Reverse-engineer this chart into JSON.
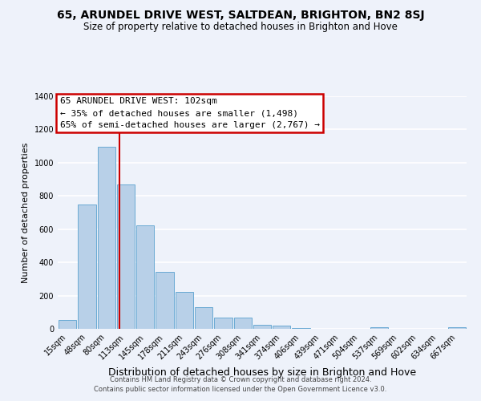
{
  "title": "65, ARUNDEL DRIVE WEST, SALTDEAN, BRIGHTON, BN2 8SJ",
  "subtitle": "Size of property relative to detached houses in Brighton and Hove",
  "xlabel": "Distribution of detached houses by size in Brighton and Hove",
  "ylabel": "Number of detached properties",
  "bar_labels": [
    "15sqm",
    "48sqm",
    "80sqm",
    "113sqm",
    "145sqm",
    "178sqm",
    "211sqm",
    "243sqm",
    "276sqm",
    "308sqm",
    "341sqm",
    "374sqm",
    "406sqm",
    "439sqm",
    "471sqm",
    "504sqm",
    "537sqm",
    "569sqm",
    "602sqm",
    "634sqm",
    "667sqm"
  ],
  "bar_values": [
    52,
    748,
    1097,
    870,
    621,
    345,
    224,
    130,
    68,
    70,
    25,
    18,
    5,
    0,
    0,
    0,
    8,
    0,
    0,
    0,
    8
  ],
  "bar_color": "#b8d0e8",
  "bar_edge_color": "#6aaad4",
  "vline_color": "#cc0000",
  "ylim": [
    0,
    1400
  ],
  "yticks": [
    0,
    200,
    400,
    600,
    800,
    1000,
    1200,
    1400
  ],
  "annotation_title": "65 ARUNDEL DRIVE WEST: 102sqm",
  "annotation_line1": "← 35% of detached houses are smaller (1,498)",
  "annotation_line2": "65% of semi-detached houses are larger (2,767) →",
  "footnote1": "Contains HM Land Registry data © Crown copyright and database right 2024.",
  "footnote2": "Contains public sector information licensed under the Open Government Licence v3.0.",
  "bg_color": "#eef2fa",
  "title_fontsize": 10,
  "subtitle_fontsize": 8.5,
  "ylabel_fontsize": 8,
  "xlabel_fontsize": 9,
  "tick_fontsize": 7,
  "annot_fontsize": 8,
  "footnote_fontsize": 6
}
